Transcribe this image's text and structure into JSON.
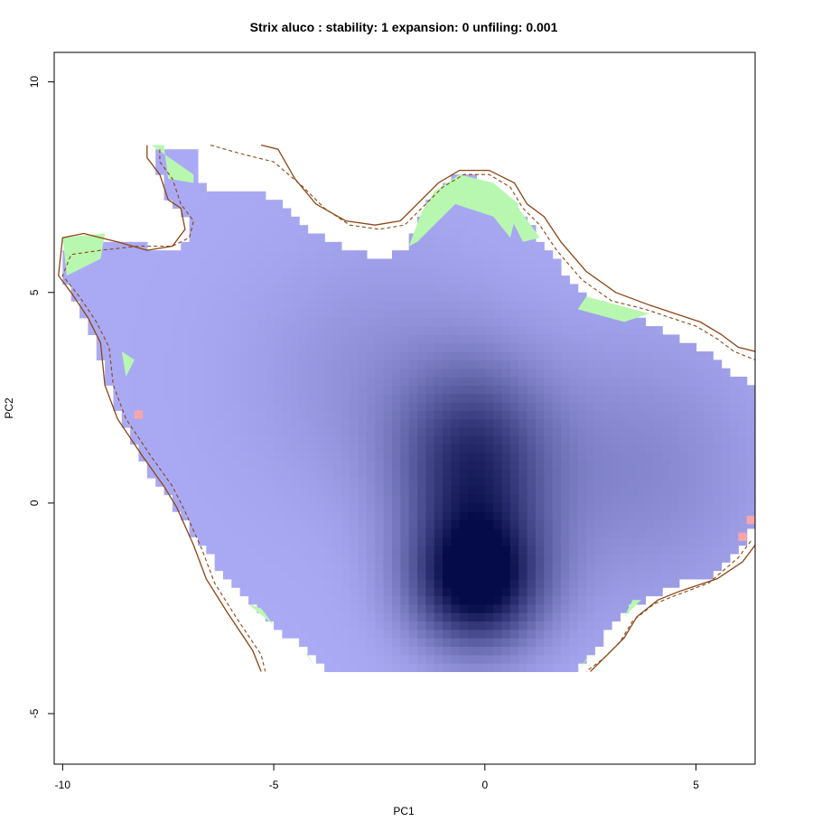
{
  "chart_data": {
    "type": "heatmap",
    "title": "Strix aluco : stability: 1 expansion: 0 unfiling: 0.001",
    "xlabel": "PC1",
    "ylabel": "PC2",
    "xlim": [
      -10.2,
      6.4
    ],
    "ylim": [
      -6.2,
      10.7
    ],
    "x_ticks": [
      -10,
      -5,
      0,
      5
    ],
    "y_ticks": [
      -5,
      0,
      5,
      10
    ],
    "grid": false,
    "colors": {
      "stability_light": "#aaaaf4",
      "stability_dark": "#050a48",
      "expansion": "#b8f7b0",
      "unfilling": "#f4a6ab",
      "contour": "#8b4513"
    },
    "density_peaks": [
      {
        "x": -0.2,
        "y": -1.9,
        "weight": 1.0
      },
      {
        "x": -0.3,
        "y": 0.9,
        "weight": 0.7
      },
      {
        "x": 3.5,
        "y": 0.8,
        "weight": 0.25
      },
      {
        "x": -2.5,
        "y": 3.0,
        "weight": 0.18
      }
    ],
    "occupied_outline": [
      [
        -7.9,
        8.5
      ],
      [
        -6.9,
        8.5
      ],
      [
        -6.9,
        7.8
      ],
      [
        -6.6,
        7.5
      ],
      [
        -6.0,
        7.4
      ],
      [
        -5.2,
        7.3
      ],
      [
        -4.6,
        7.0
      ],
      [
        -4.1,
        6.5
      ],
      [
        -3.3,
        6.0
      ],
      [
        -2.4,
        5.8
      ],
      [
        -1.8,
        6.1
      ],
      [
        -1.2,
        7.4
      ],
      [
        -0.6,
        7.8
      ],
      [
        0.2,
        7.6
      ],
      [
        0.8,
        7.0
      ],
      [
        1.5,
        6.0
      ],
      [
        2.2,
        5.0
      ],
      [
        3.3,
        4.5
      ],
      [
        4.5,
        4.0
      ],
      [
        5.5,
        3.5
      ],
      [
        6.0,
        3.0
      ],
      [
        6.4,
        2.8
      ],
      [
        6.4,
        -0.5
      ],
      [
        6.0,
        -1.2
      ],
      [
        5.3,
        -1.7
      ],
      [
        4.3,
        -2.0
      ],
      [
        3.7,
        -2.3
      ],
      [
        3.2,
        -2.7
      ],
      [
        2.7,
        -3.3
      ],
      [
        2.1,
        -4.0
      ],
      [
        -3.8,
        -4.0
      ],
      [
        -4.5,
        -3.3
      ],
      [
        -5.6,
        -2.4
      ],
      [
        -6.5,
        -1.3
      ],
      [
        -7.2,
        -0.3
      ],
      [
        -8.0,
        0.8
      ],
      [
        -8.8,
        2.4
      ],
      [
        -9.2,
        3.8
      ],
      [
        -9.8,
        5.0
      ],
      [
        -10.0,
        5.5
      ],
      [
        -9.9,
        6.0
      ],
      [
        -9.4,
        6.3
      ],
      [
        -8.3,
        6.2
      ],
      [
        -7.8,
        6.0
      ],
      [
        -7.2,
        6.0
      ],
      [
        -7.0,
        6.6
      ],
      [
        -7.6,
        7.4
      ]
    ],
    "expansion_patches": [
      [
        [
          -10.0,
          6.3
        ],
        [
          -9.0,
          6.4
        ],
        [
          -9.1,
          5.8
        ],
        [
          -9.9,
          5.4
        ]
      ],
      [
        [
          -7.9,
          8.5
        ],
        [
          -7.6,
          8.5
        ],
        [
          -7.5,
          7.7
        ],
        [
          -6.9,
          7.6
        ],
        [
          -6.9,
          7.8
        ]
      ],
      [
        [
          -1.8,
          6.1
        ],
        [
          -1.5,
          6.9
        ],
        [
          -1.2,
          7.4
        ],
        [
          -0.6,
          7.8
        ],
        [
          0.2,
          7.6
        ],
        [
          0.8,
          7.1
        ],
        [
          0.6,
          6.3
        ],
        [
          0.2,
          6.8
        ],
        [
          -0.7,
          7.1
        ],
        [
          -1.6,
          6.2
        ]
      ],
      [
        [
          0.8,
          7.0
        ],
        [
          1.3,
          6.3
        ],
        [
          0.9,
          6.2
        ],
        [
          0.6,
          6.8
        ]
      ],
      [
        [
          2.4,
          4.9
        ],
        [
          3.9,
          4.5
        ],
        [
          3.3,
          4.3
        ],
        [
          2.2,
          4.6
        ]
      ],
      [
        [
          -8.6,
          3.6
        ],
        [
          -8.3,
          3.4
        ],
        [
          -8.5,
          3.0
        ]
      ],
      [
        [
          -5.6,
          -2.4
        ],
        [
          -5.0,
          -2.9
        ],
        [
          -5.3,
          -2.5
        ]
      ],
      [
        [
          -4.3,
          -3.5
        ],
        [
          -4.0,
          -3.9
        ],
        [
          -4.2,
          -3.6
        ]
      ],
      [
        [
          3.7,
          -2.3
        ],
        [
          3.3,
          -2.7
        ],
        [
          3.5,
          -2.3
        ]
      ],
      [
        [
          2.5,
          -3.6
        ],
        [
          2.2,
          -4.0
        ],
        [
          2.4,
          -3.7
        ]
      ]
    ],
    "unfilling_patches": [
      [
        [
          -8.3,
          2.2
        ],
        [
          -8.1,
          2.2
        ],
        [
          -8.1,
          2.0
        ],
        [
          -8.3,
          2.0
        ]
      ],
      [
        [
          6.2,
          -0.3
        ],
        [
          6.4,
          -0.3
        ],
        [
          6.4,
          -0.5
        ],
        [
          6.2,
          -0.5
        ]
      ],
      [
        [
          6.0,
          -0.7
        ],
        [
          6.2,
          -0.7
        ],
        [
          6.2,
          -0.9
        ],
        [
          6.0,
          -0.9
        ]
      ]
    ],
    "contour_solid": [
      [
        [
          -8.0,
          8.5
        ],
        [
          -8.0,
          8.2
        ],
        [
          -7.7,
          7.8
        ],
        [
          -7.5,
          7.2
        ],
        [
          -7.2,
          7.0
        ],
        [
          -7.1,
          6.5
        ],
        [
          -7.4,
          6.1
        ],
        [
          -8.0,
          6.0
        ],
        [
          -8.7,
          6.2
        ],
        [
          -9.5,
          6.4
        ],
        [
          -10.0,
          6.3
        ],
        [
          -10.1,
          5.4
        ],
        [
          -9.8,
          5.0
        ],
        [
          -9.4,
          4.4
        ],
        [
          -9.1,
          3.8
        ],
        [
          -9.0,
          2.8
        ],
        [
          -8.7,
          2.0
        ],
        [
          -8.1,
          1.1
        ],
        [
          -7.6,
          0.4
        ],
        [
          -7.3,
          -0.1
        ],
        [
          -6.9,
          -1.0
        ],
        [
          -6.6,
          -1.8
        ],
        [
          -6.1,
          -2.6
        ],
        [
          -5.5,
          -3.5
        ],
        [
          -5.3,
          -4.0
        ]
      ],
      [
        [
          -5.3,
          8.5
        ],
        [
          -4.9,
          8.4
        ],
        [
          -4.5,
          7.7
        ],
        [
          -4.0,
          7.1
        ],
        [
          -3.3,
          6.7
        ],
        [
          -2.6,
          6.6
        ],
        [
          -2.0,
          6.7
        ],
        [
          -1.5,
          7.2
        ],
        [
          -1.1,
          7.6
        ],
        [
          -0.6,
          7.9
        ],
        [
          0.1,
          7.9
        ],
        [
          0.7,
          7.6
        ],
        [
          1.0,
          7.1
        ],
        [
          1.4,
          6.8
        ],
        [
          1.8,
          6.2
        ],
        [
          2.4,
          5.5
        ],
        [
          3.1,
          5.0
        ],
        [
          3.9,
          4.7
        ],
        [
          4.5,
          4.5
        ],
        [
          5.1,
          4.3
        ],
        [
          5.6,
          4.0
        ],
        [
          6.0,
          3.7
        ],
        [
          6.4,
          3.6
        ]
      ],
      [
        [
          6.4,
          -1.0
        ],
        [
          6.1,
          -1.4
        ],
        [
          5.5,
          -1.8
        ],
        [
          4.6,
          -2.1
        ],
        [
          4.1,
          -2.3
        ],
        [
          3.6,
          -2.7
        ],
        [
          3.3,
          -3.2
        ],
        [
          2.9,
          -3.6
        ],
        [
          2.5,
          -4.0
        ]
      ]
    ],
    "contour_dashed": [
      [
        [
          -7.7,
          8.4
        ],
        [
          -7.7,
          8.1
        ],
        [
          -7.4,
          7.7
        ],
        [
          -7.2,
          7.1
        ],
        [
          -6.9,
          6.7
        ],
        [
          -7.0,
          6.3
        ],
        [
          -7.4,
          6.1
        ],
        [
          -8.2,
          6.1
        ],
        [
          -9.1,
          6.0
        ],
        [
          -9.8,
          5.9
        ],
        [
          -10.0,
          5.4
        ],
        [
          -9.6,
          4.9
        ],
        [
          -9.2,
          4.3
        ],
        [
          -8.9,
          3.7
        ],
        [
          -8.8,
          2.8
        ],
        [
          -8.5,
          2.0
        ],
        [
          -7.9,
          1.1
        ],
        [
          -7.4,
          0.4
        ],
        [
          -7.1,
          -0.2
        ],
        [
          -6.7,
          -1.1
        ],
        [
          -6.4,
          -1.9
        ],
        [
          -5.9,
          -2.7
        ],
        [
          -5.3,
          -3.6
        ],
        [
          -5.2,
          -4.0
        ]
      ],
      [
        [
          -6.5,
          8.5
        ],
        [
          -5.8,
          8.3
        ],
        [
          -5.0,
          8.1
        ],
        [
          -4.3,
          7.5
        ],
        [
          -3.8,
          7.0
        ],
        [
          -3.2,
          6.6
        ],
        [
          -2.5,
          6.5
        ],
        [
          -1.9,
          6.6
        ],
        [
          -1.4,
          7.1
        ],
        [
          -1.0,
          7.5
        ],
        [
          -0.5,
          7.8
        ],
        [
          0.1,
          7.8
        ],
        [
          0.6,
          7.5
        ],
        [
          0.9,
          7.0
        ],
        [
          1.3,
          6.6
        ],
        [
          1.7,
          6.0
        ],
        [
          2.3,
          5.3
        ],
        [
          3.0,
          4.8
        ],
        [
          3.8,
          4.6
        ],
        [
          4.4,
          4.4
        ],
        [
          5.0,
          4.2
        ],
        [
          5.5,
          3.9
        ],
        [
          5.9,
          3.6
        ],
        [
          6.4,
          3.4
        ]
      ],
      [
        [
          6.3,
          -0.9
        ],
        [
          6.0,
          -1.3
        ],
        [
          5.3,
          -1.9
        ],
        [
          4.5,
          -2.2
        ],
        [
          4.0,
          -2.4
        ],
        [
          3.5,
          -2.8
        ],
        [
          3.2,
          -3.3
        ],
        [
          2.8,
          -3.7
        ],
        [
          2.4,
          -4.0
        ]
      ]
    ]
  }
}
